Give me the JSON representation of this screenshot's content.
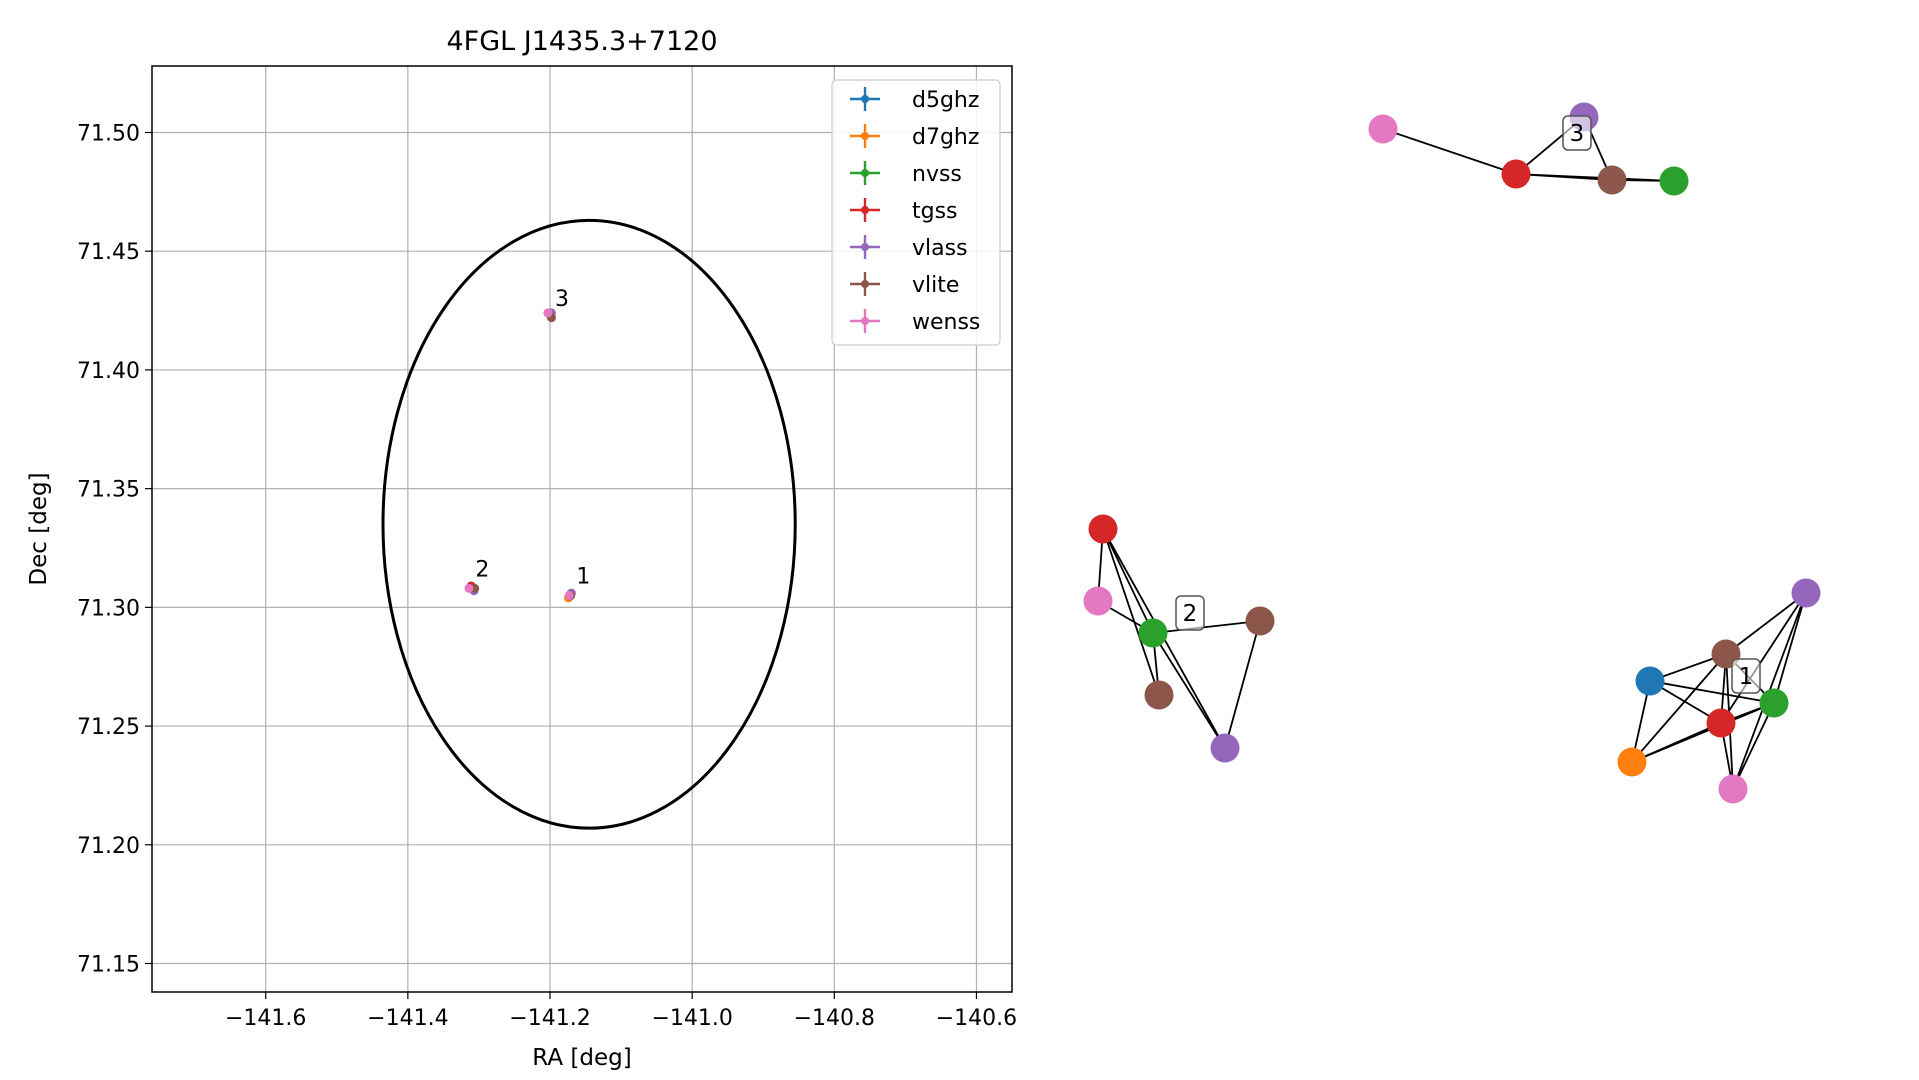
{
  "chart_data": [
    {
      "type": "scatter",
      "title": "4FGL J1435.3+7120",
      "xlabel": "RA [deg]",
      "ylabel": "Dec [deg]",
      "xlim": [
        -141.76,
        -140.55
      ],
      "ylim": [
        71.138,
        71.528
      ],
      "xticks": [
        -141.6,
        -141.4,
        -141.2,
        -141.0,
        -140.8,
        -140.6
      ],
      "xtick_labels": [
        "−141.6",
        "−141.4",
        "−141.2",
        "−141.0",
        "−140.8",
        "−140.6"
      ],
      "yticks": [
        71.15,
        71.2,
        71.25,
        71.3,
        71.35,
        71.4,
        71.45,
        71.5
      ],
      "ytick_labels": [
        "71.15",
        "71.20",
        "71.25",
        "71.30",
        "71.35",
        "71.40",
        "71.45",
        "71.50"
      ],
      "grid": true,
      "legend_position": "upper right",
      "series": [
        {
          "name": "d5ghz",
          "color": "#1f77b4",
          "points": [
            {
              "x": -141.172,
              "y": 71.305
            }
          ]
        },
        {
          "name": "d7ghz",
          "color": "#ff7f0e",
          "points": [
            {
              "x": -141.174,
              "y": 71.304
            }
          ]
        },
        {
          "name": "nvss",
          "color": "#2ca02c",
          "points": [
            {
              "x": -141.171,
              "y": 71.305
            },
            {
              "x": -141.309,
              "y": 71.308
            },
            {
              "x": -141.199,
              "y": 71.423
            }
          ]
        },
        {
          "name": "tgss",
          "color": "#d62728",
          "points": [
            {
              "x": -141.172,
              "y": 71.305
            },
            {
              "x": -141.311,
              "y": 71.309
            },
            {
              "x": -141.201,
              "y": 71.424
            }
          ]
        },
        {
          "name": "vlass",
          "color": "#9467bd",
          "points": [
            {
              "x": -141.17,
              "y": 71.306
            },
            {
              "x": -141.307,
              "y": 71.307
            },
            {
              "x": -141.198,
              "y": 71.424
            }
          ]
        },
        {
          "name": "vlite",
          "color": "#8c564b",
          "points": [
            {
              "x": -141.171,
              "y": 71.305
            },
            {
              "x": -141.306,
              "y": 71.308
            },
            {
              "x": -141.198,
              "y": 71.422
            }
          ]
        },
        {
          "name": "wenss",
          "color": "#e377c2",
          "points": [
            {
              "x": -141.173,
              "y": 71.305
            },
            {
              "x": -141.314,
              "y": 71.308
            },
            {
              "x": -141.203,
              "y": 71.424
            }
          ]
        }
      ],
      "ellipse": {
        "center_x": -141.145,
        "center_y": 71.335,
        "half_width_x": 0.29,
        "half_height_y": 0.128,
        "color": "#000000"
      },
      "annotations": [
        {
          "text": "1",
          "x": -141.163,
          "y": 71.31
        },
        {
          "text": "2",
          "x": -141.305,
          "y": 71.313
        },
        {
          "text": "3",
          "x": -141.193,
          "y": 71.427
        }
      ]
    },
    {
      "type": "network",
      "clusters": [
        {
          "label": "3",
          "nodes": [
            {
              "id": "wenss",
              "color": "#e377c2"
            },
            {
              "id": "tgss",
              "color": "#d62728"
            },
            {
              "id": "vlass",
              "color": "#9467bd"
            },
            {
              "id": "vlite",
              "color": "#8c564b"
            },
            {
              "id": "nvss",
              "color": "#2ca02c"
            }
          ],
          "edges": [
            [
              "wenss",
              "tgss"
            ],
            [
              "tgss",
              "vlass"
            ],
            [
              "tgss",
              "vlite"
            ],
            [
              "tgss",
              "nvss"
            ],
            [
              "vlass",
              "vlite"
            ],
            [
              "vlite",
              "nvss"
            ]
          ]
        },
        {
          "label": "2",
          "nodes": [
            {
              "id": "tgss",
              "color": "#d62728"
            },
            {
              "id": "wenss",
              "color": "#e377c2"
            },
            {
              "id": "nvss",
              "color": "#2ca02c"
            },
            {
              "id": "vlite",
              "color": "#8c564b"
            },
            {
              "id": "vlite_2",
              "color": "#8c564b"
            },
            {
              "id": "vlass",
              "color": "#9467bd"
            }
          ],
          "edges": [
            [
              "tgss",
              "wenss"
            ],
            [
              "tgss",
              "nvss"
            ],
            [
              "tgss",
              "vlite"
            ],
            [
              "tgss",
              "vlass"
            ],
            [
              "wenss",
              "nvss"
            ],
            [
              "nvss",
              "vlite_2"
            ],
            [
              "nvss",
              "vlite"
            ],
            [
              "nvss",
              "vlass"
            ],
            [
              "vlite_2",
              "vlass"
            ]
          ]
        },
        {
          "label": "1",
          "nodes": [
            {
              "id": "vlass",
              "color": "#9467bd"
            },
            {
              "id": "vlite",
              "color": "#8c564b"
            },
            {
              "id": "d5ghz",
              "color": "#1f77b4"
            },
            {
              "id": "nvss",
              "color": "#2ca02c"
            },
            {
              "id": "tgss",
              "color": "#d62728"
            },
            {
              "id": "d7ghz",
              "color": "#ff7f0e"
            },
            {
              "id": "wenss",
              "color": "#e377c2"
            }
          ],
          "edges": [
            [
              "vlass",
              "vlite"
            ],
            [
              "vlass",
              "tgss"
            ],
            [
              "vlass",
              "nvss"
            ],
            [
              "vlass",
              "wenss"
            ],
            [
              "vlite",
              "d5ghz"
            ],
            [
              "vlite",
              "tgss"
            ],
            [
              "vlite",
              "nvss"
            ],
            [
              "vlite",
              "wenss"
            ],
            [
              "vlite",
              "d7ghz"
            ],
            [
              "d5ghz",
              "tgss"
            ],
            [
              "d5ghz",
              "nvss"
            ],
            [
              "d5ghz",
              "d7ghz"
            ],
            [
              "tgss",
              "nvss"
            ],
            [
              "tgss",
              "d7ghz"
            ],
            [
              "tgss",
              "wenss"
            ],
            [
              "nvss",
              "d7ghz"
            ],
            [
              "nvss",
              "wenss"
            ]
          ]
        }
      ]
    }
  ]
}
